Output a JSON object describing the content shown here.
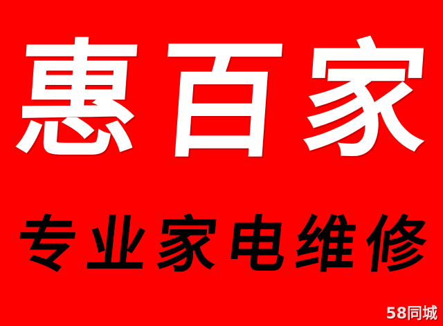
{
  "sign": {
    "title_chars": [
      "惠",
      "百",
      "家"
    ],
    "subtitle_chars": [
      "专",
      "业",
      "家",
      "电",
      "维",
      "修"
    ],
    "watermark": "58同城",
    "colors": {
      "background": "#ff0000",
      "title": "#ffffff",
      "subtitle": "#000000"
    }
  }
}
